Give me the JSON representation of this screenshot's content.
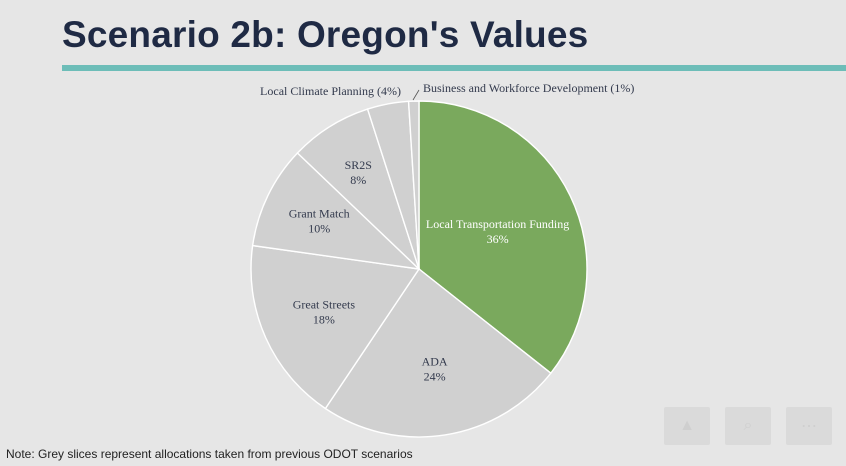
{
  "slide": {
    "title": "Scenario 2b: Oregon's Values",
    "note": "Note: Grey slices represent allocations taken from previous ODOT scenarios",
    "accent_color": "#6dbdb8",
    "title_color": "#1f2a44"
  },
  "chart_data": {
    "type": "pie",
    "title": "",
    "slices": [
      {
        "label": "Local Transportation Funding",
        "value": 36,
        "display": "36%",
        "color": "#7aa95d",
        "text_color": "#ffffff"
      },
      {
        "label": "ADA",
        "value": 24,
        "display": "24%",
        "color": "#d0d0d0",
        "text_color": "#333a4d"
      },
      {
        "label": "Great Streets",
        "value": 18,
        "display": "18%",
        "color": "#d0d0d0",
        "text_color": "#333a4d"
      },
      {
        "label": "Grant Match",
        "value": 10,
        "display": "10%",
        "color": "#d0d0d0",
        "text_color": "#333a4d"
      },
      {
        "label": "SR2S",
        "value": 8,
        "display": "8%",
        "color": "#d0d0d0",
        "text_color": "#333a4d"
      },
      {
        "label": "Local Climate Planning",
        "value": 4,
        "display": "(4%)",
        "color": "#d0d0d0",
        "text_color": "#333a4d"
      },
      {
        "label": "Business and Workforce Development",
        "value": 1,
        "display": "(1%)",
        "color": "#d0d0d0",
        "text_color": "#333a4d"
      }
    ]
  },
  "controls": [
    {
      "icon": "pointer-icon",
      "glyph": "▲"
    },
    {
      "icon": "search-icon",
      "glyph": "⌕"
    },
    {
      "icon": "more-icon",
      "glyph": "⋯"
    }
  ]
}
